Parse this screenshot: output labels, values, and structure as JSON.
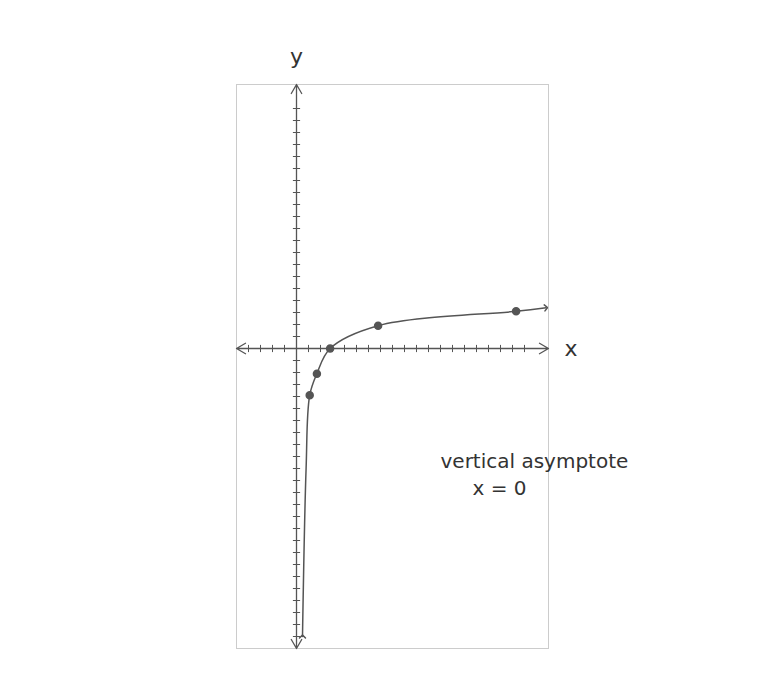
{
  "chart_data": {
    "type": "line",
    "x_label": "x",
    "y_label": "y",
    "annotations": [
      "vertical asymptote",
      "x = 0"
    ],
    "asymptote_x": 0,
    "x": [
      0.5,
      0.8,
      1.1,
      1.7,
      2.8,
      6.8,
      18.3,
      20.8
    ],
    "values": [
      -24,
      -10,
      -3.9,
      -2.1,
      0,
      1.9,
      3.1,
      3.4
    ],
    "marked_points": {
      "x": [
        1.1,
        1.7,
        2.8,
        6.8,
        18.3
      ],
      "y": [
        -3.9,
        -2.1,
        0,
        1.9,
        3.1
      ]
    },
    "color": "#555555",
    "marker": "dot",
    "line_style": "solid",
    "xlim": [
      -5,
      21
    ],
    "ylim": [
      -25,
      22
    ],
    "xticks": [
      -4,
      -3,
      -2,
      -1,
      1,
      2,
      3,
      4,
      5,
      6,
      7,
      8,
      9,
      10,
      11,
      12,
      13,
      14,
      15,
      16,
      17,
      18,
      19
    ],
    "yticks": [
      -24,
      -23,
      -22,
      -21,
      -20,
      -19,
      -18,
      -17,
      -16,
      -15,
      -14,
      -13,
      -12,
      -11,
      -10,
      -9,
      -8,
      -7,
      -6,
      -5,
      -4,
      -3,
      -2,
      -1,
      1,
      2,
      3,
      4,
      5,
      6,
      7,
      8,
      9,
      10,
      11,
      12,
      13,
      14,
      15,
      16,
      17,
      18,
      19,
      20
    ],
    "tick_labels": false,
    "grid": false
  }
}
